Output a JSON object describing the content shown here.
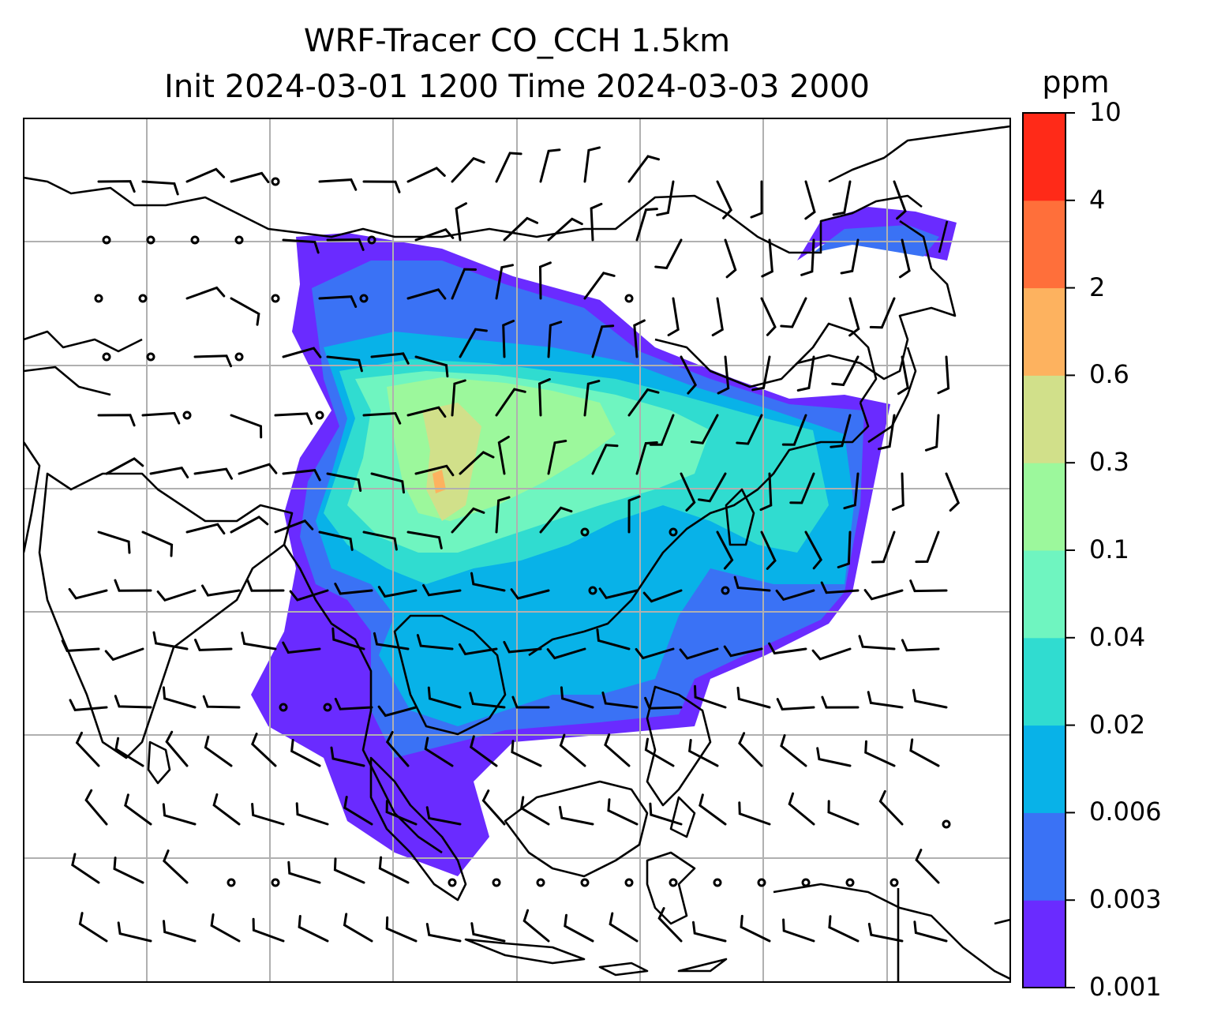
{
  "title": {
    "line1": "WRF-Tracer CO_CCH 1.5km",
    "line2": "Init 2024-03-01 1200 Time 2024-03-03 2000"
  },
  "colorbar": {
    "units": "ppm",
    "levels": [
      "0.001",
      "0.003",
      "0.006",
      "0.02",
      "0.04",
      "0.1",
      "0.3",
      "0.6",
      "2",
      "4",
      "10"
    ],
    "colors": [
      "#6a2bff",
      "#3a72f5",
      "#08b2e8",
      "#30dcd0",
      "#6ff5c0",
      "#9cf89c",
      "#d1e08a",
      "#fdb25f",
      "#ff6f3a",
      "#ff2a18"
    ]
  },
  "map": {
    "gridlines": true,
    "gridline_color": "#b0b0b0",
    "coastline_color": "#000000",
    "overlay": "wind barbs"
  }
}
